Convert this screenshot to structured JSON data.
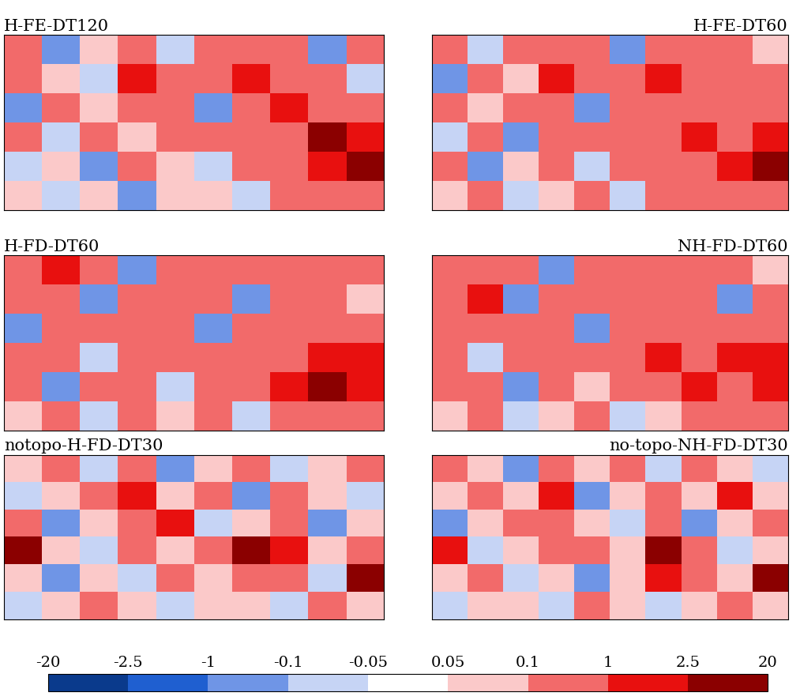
{
  "chart_data": [
    {
      "type": "heatmap",
      "title": "H-FE-DT120",
      "tick_labels": false,
      "cells": [
        [
          0.5,
          -0.5,
          0.08,
          0.5,
          -0.08,
          0.5,
          0.5,
          0.5,
          -0.5,
          0.5
        ],
        [
          0.5,
          0.08,
          -0.08,
          1.5,
          0.5,
          0.5,
          1.5,
          0.5,
          0.5,
          -0.08
        ],
        [
          -0.5,
          0.5,
          0.08,
          0.5,
          0.5,
          -0.5,
          0.5,
          1.5,
          0.5,
          0.5
        ],
        [
          0.5,
          -0.08,
          0.5,
          0.08,
          0.5,
          0.5,
          0.5,
          0.5,
          3,
          1.5
        ],
        [
          -0.08,
          0.08,
          -0.5,
          0.5,
          0.08,
          -0.08,
          0.5,
          0.5,
          1.5,
          3
        ],
        [
          0.08,
          -0.08,
          0.08,
          -0.5,
          0.08,
          0.08,
          -0.08,
          0.5,
          0.5,
          0.5
        ]
      ]
    },
    {
      "type": "heatmap",
      "title": "H-FE-DT60",
      "tick_labels": false,
      "cells": [
        [
          0.5,
          -0.08,
          0.5,
          0.5,
          0.5,
          -0.5,
          0.5,
          0.5,
          0.5,
          0.08
        ],
        [
          -0.5,
          0.5,
          0.08,
          1.5,
          0.5,
          0.5,
          1.5,
          0.5,
          0.5,
          0.5
        ],
        [
          0.5,
          0.08,
          0.5,
          0.5,
          -0.5,
          0.5,
          0.5,
          0.5,
          0.5,
          0.5
        ],
        [
          -0.08,
          0.5,
          -0.5,
          0.5,
          0.5,
          0.5,
          0.5,
          1.5,
          0.5,
          1.5
        ],
        [
          0.5,
          -0.5,
          0.08,
          0.5,
          -0.08,
          0.5,
          0.5,
          0.5,
          1.5,
          3
        ],
        [
          0.08,
          0.5,
          -0.08,
          0.08,
          0.5,
          -0.08,
          0.5,
          0.5,
          0.5,
          0.5
        ]
      ]
    },
    {
      "type": "heatmap",
      "title": "H-FD-DT60",
      "tick_labels": false,
      "cells": [
        [
          0.5,
          1.5,
          0.5,
          -0.5,
          0.5,
          0.5,
          0.5,
          0.5,
          0.5,
          0.5
        ],
        [
          0.5,
          0.5,
          -0.5,
          0.5,
          0.5,
          0.5,
          -0.5,
          0.5,
          0.5,
          0.08
        ],
        [
          -0.5,
          0.5,
          0.5,
          0.5,
          0.5,
          -0.5,
          0.5,
          0.5,
          0.5,
          0.5
        ],
        [
          0.5,
          0.5,
          -0.08,
          0.5,
          0.5,
          0.5,
          0.5,
          0.5,
          1.5,
          1.5
        ],
        [
          0.5,
          -0.5,
          0.5,
          0.5,
          -0.08,
          0.5,
          0.5,
          1.5,
          3,
          1.5
        ],
        [
          0.08,
          0.5,
          -0.08,
          0.5,
          0.08,
          0.5,
          -0.08,
          0.5,
          0.5,
          0.5
        ]
      ]
    },
    {
      "type": "heatmap",
      "title": "NH-FD-DT60",
      "tick_labels": false,
      "cells": [
        [
          0.5,
          0.5,
          0.5,
          -0.5,
          0.5,
          0.5,
          0.5,
          0.5,
          0.5,
          0.08
        ],
        [
          0.5,
          1.5,
          -0.5,
          0.5,
          0.5,
          0.5,
          0.5,
          0.5,
          -0.5,
          0.5
        ],
        [
          0.5,
          0.5,
          0.5,
          0.5,
          -0.5,
          0.5,
          0.5,
          0.5,
          0.5,
          0.5
        ],
        [
          0.5,
          -0.08,
          0.5,
          0.5,
          0.5,
          0.5,
          1.5,
          0.5,
          1.5,
          1.5
        ],
        [
          0.5,
          0.5,
          -0.5,
          0.5,
          0.08,
          0.5,
          0.5,
          1.5,
          0.5,
          1.5
        ],
        [
          0.08,
          0.5,
          -0.08,
          0.08,
          0.5,
          -0.08,
          0.08,
          0.5,
          0.5,
          0.5
        ]
      ]
    },
    {
      "type": "heatmap",
      "title": "notopo-H-FD-DT30",
      "tick_labels": false,
      "cells": [
        [
          0.08,
          0.5,
          -0.08,
          0.5,
          -0.5,
          0.08,
          0.5,
          -0.08,
          0.08,
          0.5
        ],
        [
          -0.08,
          0.08,
          0.5,
          1.5,
          0.08,
          0.5,
          -0.5,
          0.5,
          0.08,
          -0.08
        ],
        [
          0.5,
          -0.5,
          0.08,
          0.5,
          1.5,
          -0.08,
          0.08,
          0.5,
          -0.5,
          0.08
        ],
        [
          3,
          0.08,
          -0.08,
          0.5,
          0.08,
          0.5,
          3,
          1.5,
          0.08,
          0.5
        ],
        [
          0.08,
          -0.5,
          0.08,
          -0.08,
          0.5,
          0.08,
          0.5,
          0.5,
          -0.08,
          3
        ],
        [
          -0.08,
          0.08,
          0.5,
          0.08,
          -0.08,
          0.08,
          0.08,
          -0.08,
          0.5,
          0.08
        ]
      ]
    },
    {
      "type": "heatmap",
      "title": "no-topo-NH-FD-DT30",
      "tick_labels": false,
      "cells": [
        [
          0.5,
          0.08,
          -0.5,
          0.5,
          0.08,
          0.5,
          -0.08,
          0.5,
          0.08,
          -0.08
        ],
        [
          0.08,
          0.5,
          0.08,
          1.5,
          -0.5,
          0.08,
          0.5,
          0.08,
          1.5,
          0.08
        ],
        [
          -0.5,
          0.08,
          0.5,
          0.5,
          0.08,
          -0.08,
          0.5,
          -0.5,
          0.08,
          0.5
        ],
        [
          1.5,
          -0.08,
          0.08,
          0.5,
          0.5,
          0.08,
          3,
          0.5,
          -0.08,
          0.08
        ],
        [
          0.08,
          0.5,
          -0.08,
          0.08,
          -0.5,
          0.08,
          1.5,
          0.5,
          0.08,
          3
        ],
        [
          -0.08,
          0.08,
          0.08,
          -0.08,
          0.5,
          0.08,
          -0.08,
          0.08,
          0.5,
          0.08
        ]
      ]
    }
  ],
  "colorbar": {
    "range": [
      -20,
      20
    ],
    "ticks": [
      -20,
      -2.5,
      -1,
      -0.1,
      -0.05,
      0.05,
      0.1,
      1,
      2.5,
      20
    ],
    "colors": [
      "#0a3a8c",
      "#1f5fd0",
      "#6f95e6",
      "#c6d4f5",
      "#ffffff",
      "#fbc9c9",
      "#f26a6a",
      "#e8100f",
      "#8b0000"
    ]
  }
}
